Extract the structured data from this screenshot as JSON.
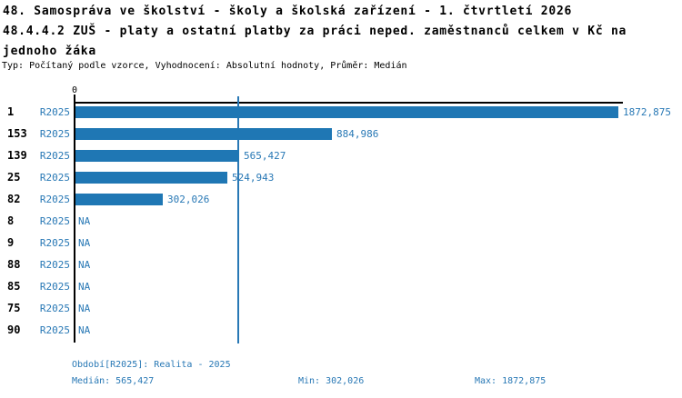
{
  "title": {
    "line1": "48. Samospráva ve školství - školy a školská zařízení - 1. čtvrtletí 2026",
    "line2": "48.4.4.2 ZUŠ - platy a ostatní platby za práci neped. zaměstnanců celkem v Kč na",
    "line3": "jednoho žáka",
    "subtitle": "Typ: Počítaný podle vzorce, Vyhodnocení: Absolutní hodnoty, Průměr: Medián"
  },
  "chart_data": {
    "type": "bar",
    "orientation": "horizontal",
    "axis_zero_label": "0",
    "xmax": 1872.875,
    "median_value": 565.427,
    "bar_color": "#1f77b4",
    "median_line_color": "#2878b5",
    "categories": [
      "1",
      "153",
      "139",
      "25",
      "82",
      "8",
      "9",
      "88",
      "85",
      "75",
      "90"
    ],
    "series_name": "R2025",
    "rows": [
      {
        "id": "1",
        "period": "R2025",
        "value": 1872.875,
        "value_label": "1872,875"
      },
      {
        "id": "153",
        "period": "R2025",
        "value": 884.986,
        "value_label": "884,986"
      },
      {
        "id": "139",
        "period": "R2025",
        "value": 565.427,
        "value_label": "565,427"
      },
      {
        "id": "25",
        "period": "R2025",
        "value": 524.943,
        "value_label": "524,943"
      },
      {
        "id": "82",
        "period": "R2025",
        "value": 302.026,
        "value_label": "302,026"
      },
      {
        "id": "8",
        "period": "R2025",
        "value": null,
        "value_label": "NA"
      },
      {
        "id": "9",
        "period": "R2025",
        "value": null,
        "value_label": "NA"
      },
      {
        "id": "88",
        "period": "R2025",
        "value": null,
        "value_label": "NA"
      },
      {
        "id": "85",
        "period": "R2025",
        "value": null,
        "value_label": "NA"
      },
      {
        "id": "75",
        "period": "R2025",
        "value": null,
        "value_label": "NA"
      },
      {
        "id": "90",
        "period": "R2025",
        "value": null,
        "value_label": "NA"
      }
    ]
  },
  "footer": {
    "period_info": "Období[R2025]: Realita - 2025",
    "median": "Medián: 565,427",
    "min": "Min: 302,026",
    "max": "Max: 1872,875"
  },
  "colors": {
    "accent_text": "#2878b5",
    "bar": "#1f77b4",
    "axis": "#000000",
    "background": "#ffffff"
  }
}
